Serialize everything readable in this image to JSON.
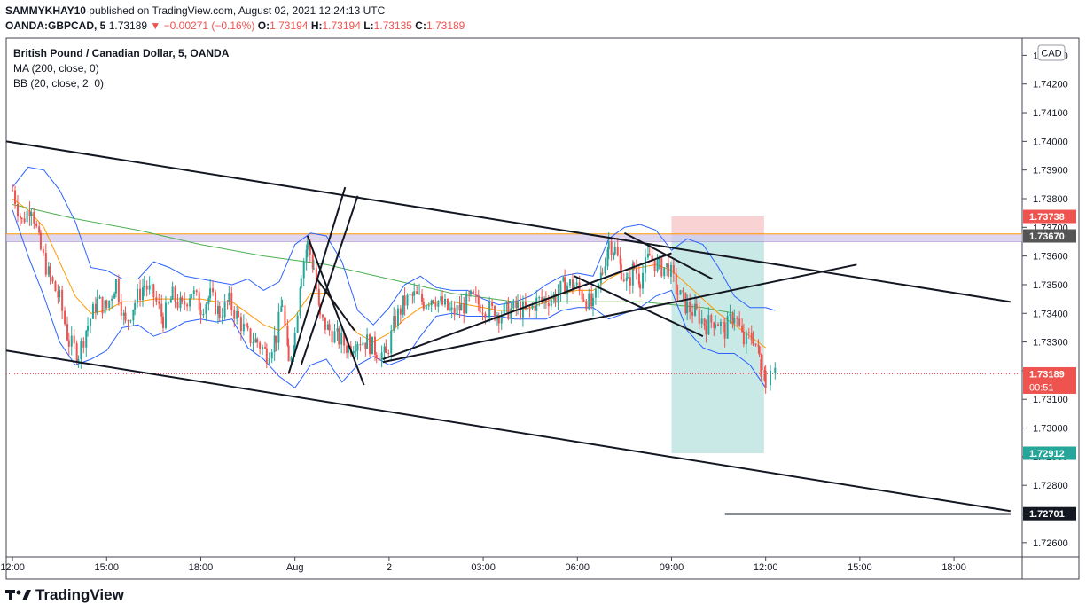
{
  "header": {
    "author": "SAMMYKHAY10",
    "published_text": "published on TradingView.com, August 02, 2021 12:24:13 UTC",
    "symbol": "OANDA:GBPCAD, 5",
    "last": "1.73189",
    "change": "−0.00271 (−0.16%)",
    "o_label": "O:",
    "o": "1.73194",
    "h_label": "H:",
    "h": "1.73194",
    "l_label": "L:",
    "l": "1.73135",
    "c_label": "C:",
    "c": "1.73189"
  },
  "legend": {
    "title": "British Pound / Canadian Dollar, 5, OANDA",
    "ma": "MA (200, close, 0)",
    "bb": "BB (20, close, 2, 0)"
  },
  "currency_badge": "CAD",
  "brand": "TradingView",
  "colors": {
    "up": "#26a69a",
    "down": "#ef5350",
    "bb": "#2962ff",
    "ma200": "#4caf50",
    "ma20": "#ff9800",
    "zone": "#d1c4e9",
    "zone_line": "#ff9800",
    "stop": "#f8c8c8",
    "target": "#b2dfdb",
    "drawing": "#131722"
  },
  "chart_data": {
    "type": "candlestick",
    "y_range": [
      1.7255,
      1.7436
    ],
    "x_range_hours": [
      11.8,
      31.6
    ],
    "y_ticks": [
      "1.74300",
      "1.74200",
      "1.74100",
      "1.74000",
      "1.73900",
      "1.73800",
      "1.73700",
      "1.73600",
      "1.73500",
      "1.73400",
      "1.73300",
      "1.73200",
      "1.73100",
      "1.73000",
      "1.72900",
      "1.72800",
      "1.72700",
      "1.72600"
    ],
    "x_ticks": [
      {
        "label": "12:00",
        "h": 12
      },
      {
        "label": "15:00",
        "h": 15
      },
      {
        "label": "18:00",
        "h": 18
      },
      {
        "label": "Aug",
        "h": 21
      },
      {
        "label": "2",
        "h": 24
      },
      {
        "label": "03:00",
        "h": 27
      },
      {
        "label": "06:00",
        "h": 30
      },
      {
        "label": "09:00",
        "h": 33
      },
      {
        "label": "12:00",
        "h": 36
      },
      {
        "label": "15:00",
        "h": 39
      },
      {
        "label": "18:00",
        "h": 42
      }
    ],
    "price_labels": [
      {
        "value": "1.73738",
        "color": "#ef5350"
      },
      {
        "value": "1.73670",
        "color": "#555555"
      },
      {
        "value": "1.73189",
        "color": "#ef5350",
        "sub": "00:51"
      },
      {
        "value": "1.72912",
        "color": "#26a69a"
      },
      {
        "value": "1.72701",
        "color": "#131722"
      }
    ],
    "path_points": [
      [
        12.0,
        1.7383
      ],
      [
        12.3,
        1.7372
      ],
      [
        12.6,
        1.7378
      ],
      [
        12.9,
        1.7362
      ],
      [
        13.2,
        1.7352
      ],
      [
        13.5,
        1.7345
      ],
      [
        13.8,
        1.733
      ],
      [
        14.1,
        1.7326
      ],
      [
        14.4,
        1.7336
      ],
      [
        14.7,
        1.7344
      ],
      [
        15.0,
        1.7342
      ],
      [
        15.3,
        1.7351
      ],
      [
        15.6,
        1.7336
      ],
      [
        15.9,
        1.7344
      ],
      [
        16.2,
        1.735
      ],
      [
        16.5,
        1.7346
      ],
      [
        16.8,
        1.7338
      ],
      [
        17.1,
        1.7346
      ],
      [
        17.4,
        1.7342
      ],
      [
        17.7,
        1.7348
      ],
      [
        18.0,
        1.7342
      ],
      [
        18.3,
        1.7346
      ],
      [
        18.6,
        1.734
      ],
      [
        18.9,
        1.7344
      ],
      [
        19.2,
        1.7338
      ],
      [
        19.5,
        1.7332
      ],
      [
        19.8,
        1.733
      ],
      [
        20.1,
        1.7326
      ],
      [
        20.4,
        1.7332
      ],
      [
        20.6,
        1.7344
      ],
      [
        20.8,
        1.7322
      ],
      [
        21.0,
        1.7333
      ],
      [
        21.2,
        1.7355
      ],
      [
        21.4,
        1.7364
      ],
      [
        21.6,
        1.7356
      ],
      [
        21.8,
        1.7338
      ],
      [
        22.1,
        1.7334
      ],
      [
        22.4,
        1.7331
      ],
      [
        22.7,
        1.7328
      ],
      [
        23.0,
        1.7331
      ],
      [
        23.3,
        1.733
      ],
      [
        23.6,
        1.7327
      ],
      [
        23.9,
        1.7325
      ],
      [
        24.2,
        1.7338
      ],
      [
        24.5,
        1.7344
      ],
      [
        24.8,
        1.7346
      ],
      [
        25.1,
        1.7344
      ],
      [
        25.4,
        1.7346
      ],
      [
        25.7,
        1.7343
      ],
      [
        26.0,
        1.734
      ],
      [
        26.3,
        1.7342
      ],
      [
        26.6,
        1.7345
      ],
      [
        26.9,
        1.7343
      ],
      [
        27.2,
        1.7341
      ],
      [
        27.5,
        1.734
      ],
      [
        27.8,
        1.7341
      ],
      [
        28.1,
        1.7342
      ],
      [
        28.4,
        1.734
      ],
      [
        28.7,
        1.7344
      ],
      [
        29.0,
        1.7345
      ],
      [
        29.3,
        1.7346
      ],
      [
        29.6,
        1.735
      ],
      [
        29.9,
        1.735
      ],
      [
        30.2,
        1.7346
      ],
      [
        30.5,
        1.7342
      ],
      [
        30.8,
        1.7355
      ],
      [
        31.0,
        1.7365
      ],
      [
        31.2,
        1.7362
      ],
      [
        31.4,
        1.7355
      ],
      [
        31.6,
        1.735
      ],
      [
        31.8,
        1.7356
      ],
      [
        32.0,
        1.7352
      ],
      [
        32.3,
        1.736
      ],
      [
        32.6,
        1.7356
      ],
      [
        32.9,
        1.7356
      ],
      [
        33.2,
        1.7347
      ],
      [
        33.5,
        1.7342
      ],
      [
        33.8,
        1.734
      ],
      [
        34.1,
        1.7336
      ],
      [
        34.4,
        1.7338
      ],
      [
        34.7,
        1.7334
      ],
      [
        35.0,
        1.734
      ],
      [
        35.3,
        1.733
      ],
      [
        35.6,
        1.7332
      ],
      [
        35.8,
        1.7325
      ],
      [
        36.0,
        1.7319
      ]
    ],
    "ma200": [
      [
        12.0,
        1.7378
      ],
      [
        14.0,
        1.7373
      ],
      [
        16.0,
        1.7369
      ],
      [
        18.0,
        1.7364
      ],
      [
        20.0,
        1.736
      ],
      [
        22.0,
        1.7357
      ],
      [
        24.0,
        1.7352
      ],
      [
        26.0,
        1.7347
      ],
      [
        28.0,
        1.7344
      ],
      [
        30.0,
        1.7344
      ],
      [
        32.0,
        1.7344
      ],
      [
        34.0,
        1.7342
      ],
      [
        35.0,
        1.734
      ]
    ],
    "ma20": [
      [
        12.0,
        1.738
      ],
      [
        12.5,
        1.7376
      ],
      [
        13.0,
        1.737
      ],
      [
        13.5,
        1.7358
      ],
      [
        14.0,
        1.7346
      ],
      [
        14.5,
        1.734
      ],
      [
        15.0,
        1.7341
      ],
      [
        15.5,
        1.7344
      ],
      [
        16.0,
        1.7344
      ],
      [
        16.5,
        1.7345
      ],
      [
        17.0,
        1.7345
      ],
      [
        17.5,
        1.7345
      ],
      [
        18.0,
        1.7345
      ],
      [
        18.5,
        1.7344
      ],
      [
        19.0,
        1.7344
      ],
      [
        19.5,
        1.734
      ],
      [
        20.0,
        1.7336
      ],
      [
        20.5,
        1.7334
      ],
      [
        21.0,
        1.7339
      ],
      [
        21.5,
        1.7347
      ],
      [
        22.0,
        1.7347
      ],
      [
        22.5,
        1.734
      ],
      [
        23.0,
        1.7333
      ],
      [
        23.5,
        1.733
      ],
      [
        24.0,
        1.7333
      ],
      [
        24.5,
        1.7338
      ],
      [
        25.0,
        1.7342
      ],
      [
        25.5,
        1.7344
      ],
      [
        26.0,
        1.7344
      ],
      [
        26.5,
        1.7343
      ],
      [
        27.0,
        1.7342
      ],
      [
        27.5,
        1.7341
      ],
      [
        28.0,
        1.7341
      ],
      [
        28.5,
        1.7342
      ],
      [
        29.0,
        1.7344
      ],
      [
        29.5,
        1.7347
      ],
      [
        30.0,
        1.7348
      ],
      [
        30.5,
        1.7348
      ],
      [
        31.0,
        1.7352
      ],
      [
        31.5,
        1.7355
      ],
      [
        32.0,
        1.7356
      ],
      [
        32.5,
        1.7357
      ],
      [
        33.0,
        1.7355
      ],
      [
        33.5,
        1.735
      ],
      [
        34.0,
        1.7345
      ],
      [
        34.5,
        1.734
      ],
      [
        35.0,
        1.7336
      ],
      [
        35.5,
        1.7332
      ],
      [
        36.0,
        1.7328
      ]
    ],
    "bb_upper": [
      [
        12.0,
        1.7384
      ],
      [
        12.5,
        1.7391
      ],
      [
        13.0,
        1.739
      ],
      [
        13.5,
        1.7383
      ],
      [
        14.0,
        1.7372
      ],
      [
        14.5,
        1.7356
      ],
      [
        15.0,
        1.7355
      ],
      [
        15.5,
        1.7352
      ],
      [
        16.0,
        1.7352
      ],
      [
        16.5,
        1.7358
      ],
      [
        17.0,
        1.7356
      ],
      [
        17.5,
        1.7353
      ],
      [
        18.0,
        1.7352
      ],
      [
        18.5,
        1.7351
      ],
      [
        19.0,
        1.735
      ],
      [
        19.5,
        1.7352
      ],
      [
        20.0,
        1.7348
      ],
      [
        20.5,
        1.7351
      ],
      [
        21.0,
        1.7364
      ],
      [
        21.5,
        1.7368
      ],
      [
        22.0,
        1.7367
      ],
      [
        22.5,
        1.7358
      ],
      [
        23.0,
        1.7341
      ],
      [
        23.5,
        1.7336
      ],
      [
        24.0,
        1.7342
      ],
      [
        24.5,
        1.735
      ],
      [
        25.0,
        1.7353
      ],
      [
        25.5,
        1.7349
      ],
      [
        26.0,
        1.7348
      ],
      [
        26.5,
        1.7348
      ],
      [
        27.0,
        1.7345
      ],
      [
        27.5,
        1.7343
      ],
      [
        28.0,
        1.7344
      ],
      [
        28.5,
        1.7346
      ],
      [
        29.0,
        1.735
      ],
      [
        29.5,
        1.7353
      ],
      [
        30.0,
        1.7354
      ],
      [
        30.5,
        1.7353
      ],
      [
        31.0,
        1.7366
      ],
      [
        31.5,
        1.737
      ],
      [
        32.0,
        1.7371
      ],
      [
        32.5,
        1.7369
      ],
      [
        33.0,
        1.7362
      ],
      [
        33.5,
        1.7366
      ],
      [
        34.0,
        1.7364
      ],
      [
        34.5,
        1.7356
      ],
      [
        35.0,
        1.7346
      ],
      [
        35.5,
        1.7342
      ],
      [
        36.0,
        1.7342
      ],
      [
        36.3,
        1.7341
      ]
    ],
    "bb_lower": [
      [
        12.0,
        1.7376
      ],
      [
        12.5,
        1.736
      ],
      [
        13.0,
        1.7346
      ],
      [
        13.5,
        1.733
      ],
      [
        14.0,
        1.7322
      ],
      [
        14.5,
        1.7324
      ],
      [
        15.0,
        1.7327
      ],
      [
        15.5,
        1.7335
      ],
      [
        16.0,
        1.7336
      ],
      [
        16.5,
        1.7332
      ],
      [
        17.0,
        1.7334
      ],
      [
        17.5,
        1.7337
      ],
      [
        18.0,
        1.7338
      ],
      [
        18.5,
        1.7337
      ],
      [
        19.0,
        1.7338
      ],
      [
        19.5,
        1.7328
      ],
      [
        20.0,
        1.7324
      ],
      [
        20.5,
        1.7318
      ],
      [
        21.0,
        1.7314
      ],
      [
        21.5,
        1.7322
      ],
      [
        22.0,
        1.7324
      ],
      [
        22.5,
        1.7316
      ],
      [
        23.0,
        1.7322
      ],
      [
        23.5,
        1.7325
      ],
      [
        24.0,
        1.7322
      ],
      [
        24.5,
        1.7324
      ],
      [
        25.0,
        1.7332
      ],
      [
        25.5,
        1.7339
      ],
      [
        26.0,
        1.734
      ],
      [
        26.5,
        1.7339
      ],
      [
        27.0,
        1.7339
      ],
      [
        27.5,
        1.7339
      ],
      [
        28.0,
        1.7338
      ],
      [
        28.5,
        1.7338
      ],
      [
        29.0,
        1.7338
      ],
      [
        29.5,
        1.7341
      ],
      [
        30.0,
        1.7342
      ],
      [
        30.5,
        1.7342
      ],
      [
        31.0,
        1.7338
      ],
      [
        31.5,
        1.734
      ],
      [
        32.0,
        1.7342
      ],
      [
        32.5,
        1.7346
      ],
      [
        33.0,
        1.7348
      ],
      [
        33.5,
        1.7334
      ],
      [
        34.0,
        1.7328
      ],
      [
        34.5,
        1.7326
      ],
      [
        35.0,
        1.7326
      ],
      [
        35.5,
        1.7322
      ],
      [
        36.0,
        1.7314
      ]
    ],
    "last_candles": [
      [
        35.85,
        1.7324,
        1.7318
      ],
      [
        36.0,
        1.732,
        1.7314
      ],
      [
        36.15,
        1.7315,
        1.732
      ],
      [
        36.3,
        1.7319,
        1.7321
      ]
    ],
    "drawings": [
      {
        "x1": 11.8,
        "y1": 1.74,
        "x2": 43.8,
        "y2": 1.7344
      },
      {
        "x1": 11.8,
        "y1": 1.7327,
        "x2": 43.8,
        "y2": 1.7271
      },
      {
        "x1": 20.8,
        "y1": 1.7319,
        "x2": 22.6,
        "y2": 1.7384
      },
      {
        "x1": 21.2,
        "y1": 1.7322,
        "x2": 23.0,
        "y2": 1.7381
      },
      {
        "x1": 21.4,
        "y1": 1.7367,
        "x2": 23.2,
        "y2": 1.7315
      },
      {
        "x1": 21.7,
        "y1": 1.7352,
        "x2": 22.9,
        "y2": 1.7334
      },
      {
        "x1": 23.8,
        "y1": 1.7324,
        "x2": 33.0,
        "y2": 1.7361
      },
      {
        "x1": 23.8,
        "y1": 1.7323,
        "x2": 38.9,
        "y2": 1.7357
      },
      {
        "x1": 31.5,
        "y1": 1.7368,
        "x2": 34.3,
        "y2": 1.7352
      },
      {
        "x1": 29.9,
        "y1": 1.7353,
        "x2": 34.0,
        "y2": 1.7332
      },
      {
        "x1": 34.7,
        "y1": 1.727,
        "x2": 43.8,
        "y2": 1.727
      }
    ],
    "zone": {
      "top": 1.73677,
      "bottom": 1.7365
    },
    "position": {
      "x_start": 33.0,
      "x_end": 35.95,
      "entry": 1.7367,
      "stop": 1.73738,
      "target": 1.72912
    }
  }
}
